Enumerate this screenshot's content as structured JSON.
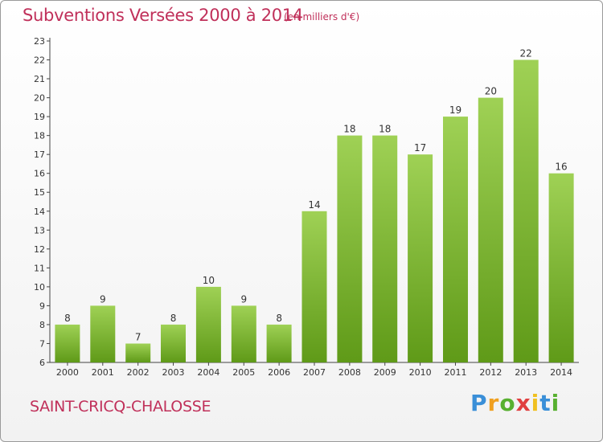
{
  "header": {
    "title": "Subventions Versées 2000 à 2014",
    "subtitle": "(en milliers d'€)"
  },
  "footer": {
    "commune": "SAINT-CRICQ-CHALOSSE",
    "logo": "Proxiti"
  },
  "colors": {
    "bar_top": "#9fd155",
    "bar_bottom": "#5f9a18",
    "title": "#c0305a"
  },
  "chart_data": {
    "type": "bar",
    "title": "Subventions Versées 2000 à 2014",
    "subtitle": "(en milliers d'€)",
    "categories": [
      "2000",
      "2001",
      "2002",
      "2003",
      "2004",
      "2005",
      "2006",
      "2007",
      "2008",
      "2009",
      "2010",
      "2011",
      "2012",
      "2013",
      "2014"
    ],
    "values": [
      8,
      9,
      7,
      8,
      10,
      9,
      8,
      14,
      18,
      18,
      17,
      19,
      20,
      22,
      16
    ],
    "ylim": [
      6,
      23
    ],
    "yticks": [
      6,
      7,
      8,
      9,
      10,
      11,
      12,
      13,
      14,
      15,
      16,
      17,
      18,
      19,
      20,
      21,
      22,
      23
    ],
    "grid": false,
    "data_labels": true
  }
}
